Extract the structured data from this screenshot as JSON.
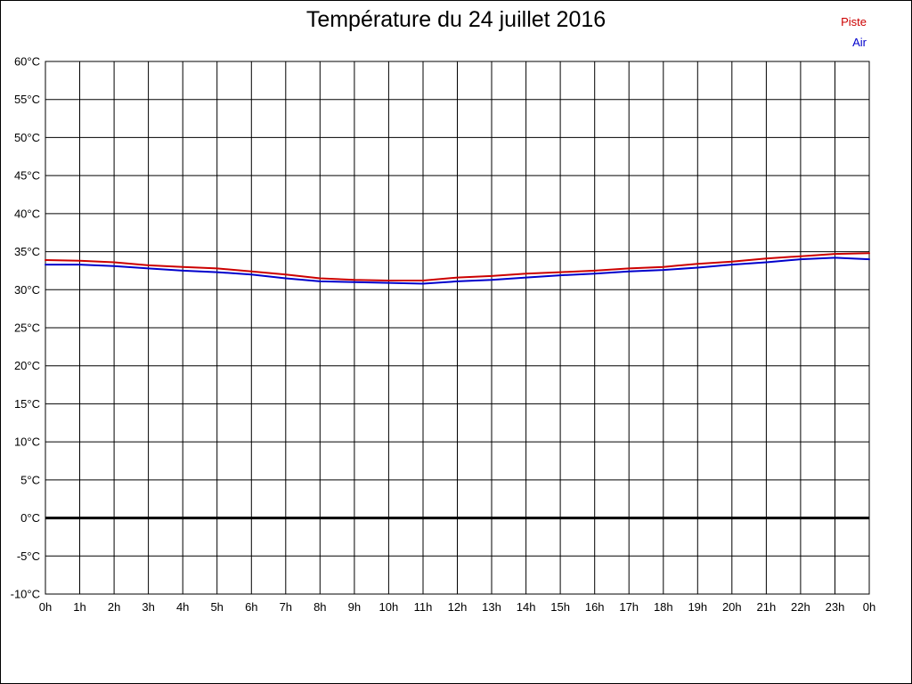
{
  "title": "Température du 24 juillet 2016",
  "legend": [
    {
      "label": "Piste",
      "color": "#cc0000"
    },
    {
      "label": "Air",
      "color": "#0000cc"
    }
  ],
  "chart_data": {
    "type": "line",
    "title": "Température du 24 juillet 2016",
    "xlabel": "",
    "ylabel": "",
    "xlim": [
      0,
      24
    ],
    "ylim": [
      -10,
      60
    ],
    "grid": true,
    "grid_color": "#000000",
    "zero_line": true,
    "x_tick_labels": [
      "0h",
      "1h",
      "2h",
      "3h",
      "4h",
      "5h",
      "6h",
      "7h",
      "8h",
      "9h",
      "10h",
      "11h",
      "12h",
      "13h",
      "14h",
      "15h",
      "16h",
      "17h",
      "18h",
      "19h",
      "20h",
      "21h",
      "22h",
      "23h",
      "0h"
    ],
    "y_tick_values": [
      60,
      55,
      50,
      45,
      40,
      35,
      30,
      25,
      20,
      15,
      10,
      5,
      0,
      -5,
      -10
    ],
    "y_tick_labels": [
      "60°C",
      "55°C",
      "50°C",
      "45°C",
      "40°C",
      "35°C",
      "30°C",
      "25°C",
      "20°C",
      "15°C",
      "10°C",
      "5°C",
      "0°C",
      "-5°C",
      "-10°C"
    ],
    "series": [
      {
        "name": "Piste",
        "color": "#cc0000",
        "x": [
          0,
          1,
          2,
          3,
          4,
          5,
          6,
          7,
          8,
          9,
          10,
          11,
          12,
          13,
          14,
          15,
          16,
          17,
          18,
          19,
          20,
          21,
          22,
          23,
          24
        ],
        "values": [
          33.9,
          33.8,
          33.6,
          33.2,
          33.0,
          32.8,
          32.4,
          32.0,
          31.5,
          31.3,
          31.2,
          31.2,
          31.6,
          31.8,
          32.1,
          32.3,
          32.5,
          32.8,
          33.0,
          33.4,
          33.7,
          34.1,
          34.4,
          34.7,
          34.8
        ]
      },
      {
        "name": "Air",
        "color": "#0000cc",
        "x": [
          0,
          1,
          2,
          3,
          4,
          5,
          6,
          7,
          8,
          9,
          10,
          11,
          12,
          13,
          14,
          15,
          16,
          17,
          18,
          19,
          20,
          21,
          22,
          23,
          24
        ],
        "values": [
          33.3,
          33.3,
          33.1,
          32.8,
          32.5,
          32.3,
          32.0,
          31.5,
          31.1,
          31.0,
          30.9,
          30.8,
          31.1,
          31.3,
          31.6,
          31.9,
          32.1,
          32.4,
          32.6,
          32.9,
          33.3,
          33.6,
          34.0,
          34.2,
          34.0
        ]
      }
    ]
  }
}
